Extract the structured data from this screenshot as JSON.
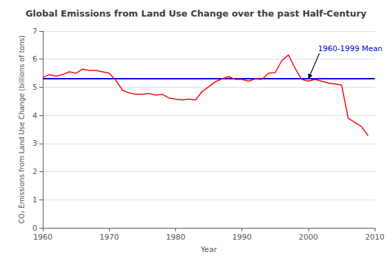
{
  "chart_data": {
    "type": "line",
    "title": "Global Emissions from Land Use Change over the past Half-Century",
    "xlabel": "Year",
    "ylabel": "CO₂ Emissions from Land Use Change (billions of tons)",
    "x": [
      1960,
      1961,
      1962,
      1963,
      1964,
      1965,
      1966,
      1967,
      1968,
      1969,
      1970,
      1971,
      1972,
      1973,
      1974,
      1975,
      1976,
      1977,
      1978,
      1979,
      1980,
      1981,
      1982,
      1983,
      1984,
      1985,
      1986,
      1987,
      1988,
      1989,
      1990,
      1991,
      1992,
      1993,
      1994,
      1995,
      1996,
      1997,
      1998,
      1999,
      2000,
      2001,
      2002,
      2003,
      2004,
      2005,
      2006,
      2007,
      2008,
      2009
    ],
    "values": [
      5.35,
      5.45,
      5.4,
      5.45,
      5.55,
      5.5,
      5.65,
      5.6,
      5.6,
      5.55,
      5.5,
      5.25,
      4.9,
      4.8,
      4.75,
      4.75,
      4.78,
      4.72,
      4.75,
      4.62,
      4.58,
      4.55,
      4.58,
      4.55,
      4.85,
      5.02,
      5.2,
      5.3,
      5.38,
      5.28,
      5.28,
      5.22,
      5.3,
      5.28,
      5.5,
      5.52,
      5.95,
      6.15,
      5.68,
      5.28,
      5.22,
      5.28,
      5.22,
      5.15,
      5.12,
      5.08,
      3.9,
      3.75,
      3.6,
      3.28
    ],
    "color": "#ff0000",
    "mean_line": {
      "value": 5.3,
      "color": "#0000cd"
    },
    "annotation": {
      "text": "1960-1999 Mean",
      "x": 2000,
      "y": 5.3,
      "color": "#0000cd"
    },
    "xlim": [
      1960,
      2010
    ],
    "xticks": [
      1960,
      1970,
      1980,
      1990,
      2000,
      2010
    ],
    "ylim": [
      0,
      7
    ],
    "yticks": [
      0,
      1,
      2,
      3,
      4,
      5,
      6,
      7
    ],
    "grid": true
  }
}
